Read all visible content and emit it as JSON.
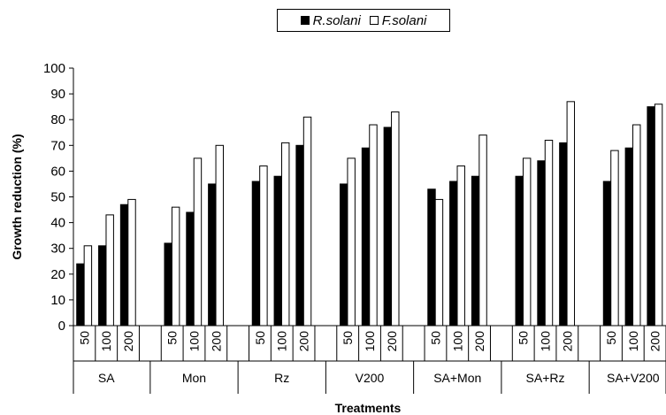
{
  "chart_data": {
    "type": "bar",
    "ylabel": "Growth reduction (%)",
    "xlabel": "Treatments",
    "ylim": [
      0,
      100
    ],
    "yticks": [
      0,
      10,
      20,
      30,
      40,
      50,
      60,
      70,
      80,
      90,
      100
    ],
    "grid": false,
    "legend_placement": "top-center",
    "groups": [
      "SA",
      "Mon",
      "Rz",
      "V200",
      "SA+Mon",
      "SA+Rz",
      "SA+V200"
    ],
    "doses": [
      "50",
      "100",
      "200"
    ],
    "series": [
      {
        "name": "R.solani",
        "color": "#000000",
        "values": [
          [
            24,
            31,
            47
          ],
          [
            32,
            44,
            55
          ],
          [
            56,
            58,
            70
          ],
          [
            55,
            69,
            77
          ],
          [
            53,
            56,
            58
          ],
          [
            58,
            64,
            71
          ],
          [
            56,
            69,
            85
          ]
        ]
      },
      {
        "name": "F.solani",
        "color": "#ffffff",
        "values": [
          [
            31,
            43,
            49
          ],
          [
            46,
            65,
            70
          ],
          [
            62,
            71,
            81
          ],
          [
            65,
            78,
            83
          ],
          [
            49,
            62,
            74
          ],
          [
            65,
            72,
            87
          ],
          [
            68,
            78,
            86
          ]
        ]
      }
    ]
  }
}
